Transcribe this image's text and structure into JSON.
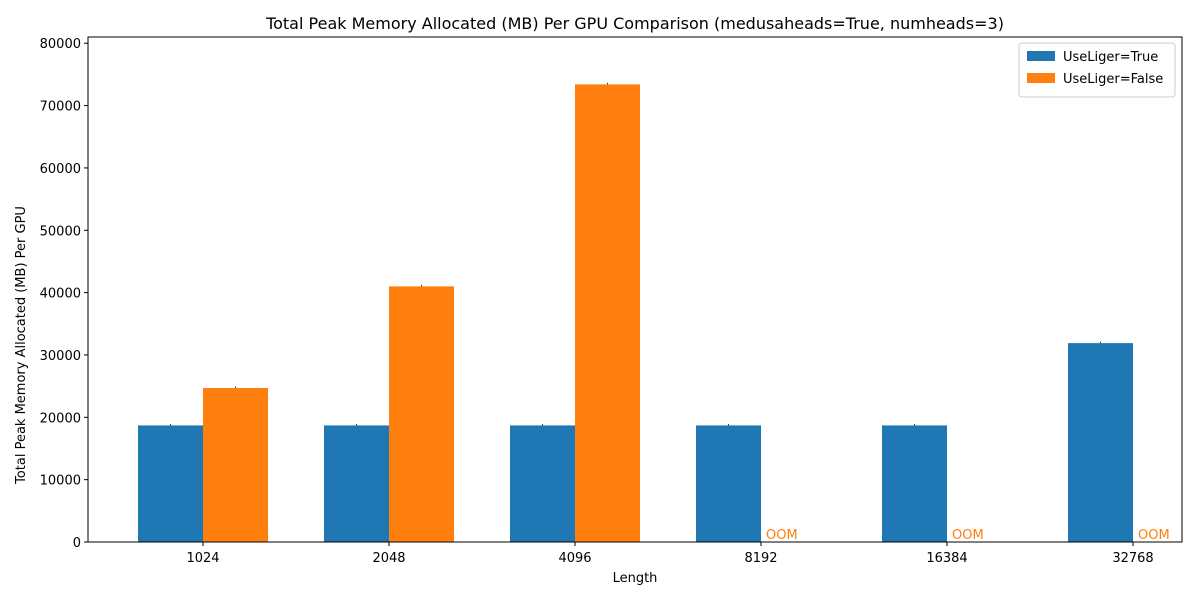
{
  "chart_data": {
    "type": "bar",
    "title": "Total Peak Memory Allocated (MB) Per GPU Comparison (medusaheads=True, numheads=3)",
    "xlabel": "Length",
    "ylabel": "Total Peak Memory Allocated (MB) Per GPU",
    "categories": [
      "1024",
      "2048",
      "4096",
      "8192",
      "16384",
      "32768"
    ],
    "ylim": [
      0,
      81000
    ],
    "yticks": [
      0,
      10000,
      20000,
      30000,
      40000,
      50000,
      60000,
      70000,
      80000
    ],
    "grid": false,
    "legend_position": "top-right",
    "series": [
      {
        "name": "UseLiger=True",
        "color": "#1f77b4",
        "values": [
          18700,
          18700,
          18700,
          18700,
          18700,
          31900
        ]
      },
      {
        "name": "UseLiger=False",
        "color": "#ff7f0e",
        "values": [
          24700,
          41000,
          73400,
          null,
          null,
          null
        ],
        "missing_label": "OOM"
      }
    ]
  }
}
